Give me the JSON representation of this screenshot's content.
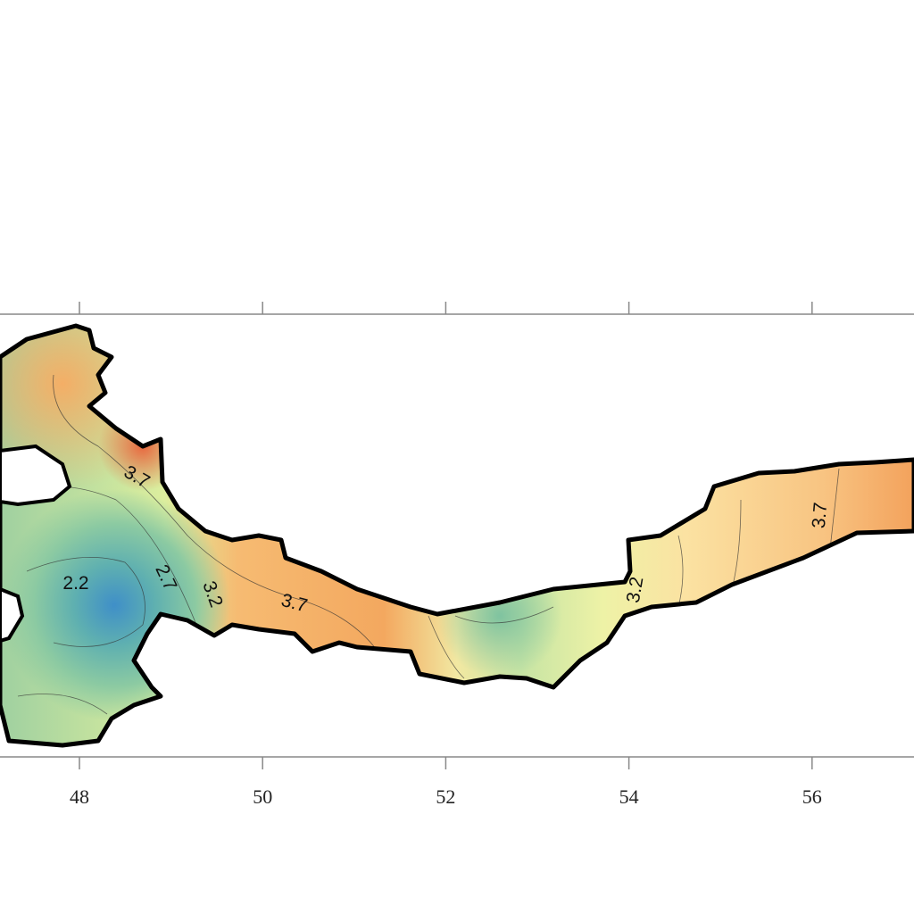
{
  "map": {
    "xticks": [
      48,
      50,
      52,
      54,
      56
    ],
    "contour_labels": [
      3.7,
      2.2,
      2.7,
      3.2,
      3.7,
      3.2,
      3.7
    ]
  }
}
